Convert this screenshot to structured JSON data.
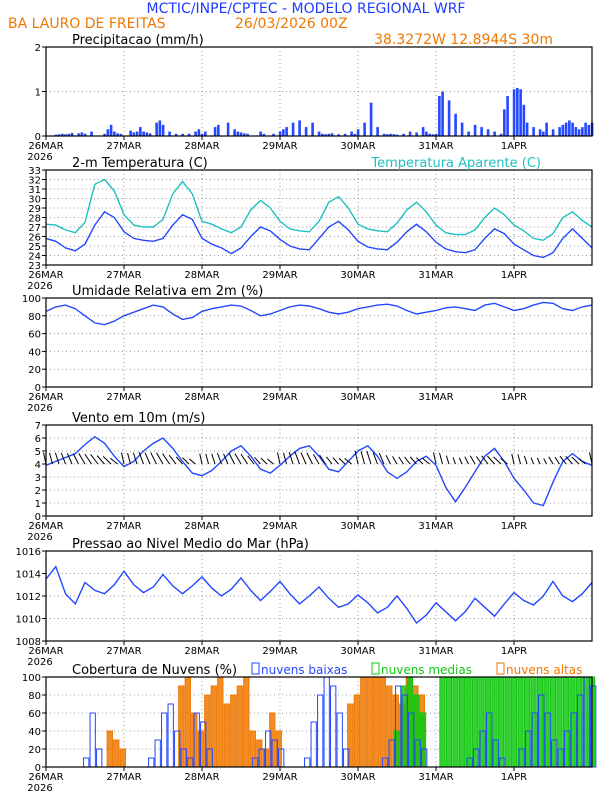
{
  "header": {
    "title": "MCTIC/INPE/CPTEC - MODELO REGIONAL WRF",
    "location": "BA LAURO DE FREITAS",
    "run": "26/03/2026 00Z",
    "coords": "38.3272W 12.8944S 30m"
  },
  "colors": {
    "title": "#1e3cff",
    "orange": "#f07800",
    "cyan": "#20c0c0",
    "blue": "#2448ff",
    "green": "#10c810",
    "grid": "#9a9a9a"
  },
  "x_axis": {
    "labels": [
      "26MAR",
      "27MAR",
      "28MAR",
      "29MAR",
      "30MAR",
      "31MAR",
      "1APR"
    ],
    "year": "2026",
    "hours_total": 168
  },
  "chart_data": [
    {
      "type": "bar",
      "name": "precip",
      "title": "Precipitacao (mm/h)",
      "ylim": [
        0,
        2
      ],
      "yticks": [
        0,
        1,
        2
      ],
      "x_hours": [
        3,
        4,
        5,
        6,
        7,
        8,
        10,
        11,
        12,
        14,
        18,
        19,
        20,
        21,
        22,
        23,
        26,
        27,
        28,
        29,
        30,
        31,
        32,
        34,
        35,
        36,
        38,
        40,
        42,
        44,
        46,
        47,
        48,
        49,
        52,
        53,
        56,
        58,
        59,
        60,
        61,
        62,
        66,
        67,
        70,
        72,
        73,
        74,
        76,
        78,
        80,
        82,
        84,
        85,
        86,
        87,
        88,
        90,
        92,
        94,
        95,
        96,
        98,
        100,
        102,
        104,
        105,
        106,
        107,
        108,
        110,
        112,
        114,
        116,
        117,
        118,
        119,
        120,
        121,
        122,
        124,
        126,
        128,
        130,
        132,
        134,
        136,
        138,
        140,
        141,
        142,
        144,
        145,
        146,
        147,
        148,
        150,
        152,
        153,
        154,
        156,
        158,
        159,
        160,
        161,
        162,
        163,
        164,
        165,
        166,
        167,
        168
      ],
      "values": [
        0.03,
        0.04,
        0.05,
        0.04,
        0.05,
        0.07,
        0.06,
        0.08,
        0.05,
        0.1,
        0.05,
        0.15,
        0.25,
        0.1,
        0.06,
        0.05,
        0.12,
        0.08,
        0.1,
        0.2,
        0.1,
        0.08,
        0.06,
        0.3,
        0.35,
        0.25,
        0.1,
        0.05,
        0.05,
        0.05,
        0.1,
        0.15,
        0.05,
        0.1,
        0.2,
        0.25,
        0.3,
        0.15,
        0.1,
        0.08,
        0.06,
        0.05,
        0.1,
        0.05,
        0.05,
        0.1,
        0.15,
        0.2,
        0.3,
        0.35,
        0.2,
        0.3,
        0.1,
        0.05,
        0.04,
        0.05,
        0.06,
        0.04,
        0.05,
        0.1,
        0.05,
        0.15,
        0.3,
        0.75,
        0.2,
        0.05,
        0.04,
        0.05,
        0.04,
        0.03,
        0.05,
        0.1,
        0.08,
        0.2,
        0.1,
        0.05,
        0.04,
        0.05,
        0.9,
        1.0,
        0.8,
        0.5,
        0.3,
        0.1,
        0.25,
        0.2,
        0.15,
        0.1,
        0.05,
        0.6,
        0.9,
        1.05,
        1.08,
        1.05,
        0.7,
        0.3,
        0.2,
        0.15,
        0.1,
        0.3,
        0.15,
        0.2,
        0.25,
        0.3,
        0.35,
        0.3,
        0.2,
        0.15,
        0.2,
        0.3,
        0.25,
        0.3
      ]
    },
    {
      "type": "line",
      "name": "temperature",
      "title": "2-m Temperatura (C)",
      "legend": "Temperatura Aparente (C)",
      "ylim": [
        23,
        33
      ],
      "yticks": [
        23,
        24,
        25,
        26,
        27,
        28,
        29,
        30,
        31,
        32,
        33
      ],
      "x_hours": [
        0,
        3,
        6,
        9,
        12,
        15,
        18,
        21,
        24,
        27,
        30,
        33,
        36,
        39,
        42,
        45,
        48,
        51,
        54,
        57,
        60,
        63,
        66,
        69,
        72,
        75,
        78,
        81,
        84,
        87,
        90,
        93,
        96,
        99,
        102,
        105,
        108,
        111,
        114,
        117,
        120,
        123,
        126,
        129,
        132,
        135,
        138,
        141,
        144,
        147,
        150,
        153,
        156,
        159,
        162,
        165,
        168
      ],
      "series": [
        {
          "name": "2-m Temperatura (C)",
          "values": [
            25.8,
            25.5,
            24.8,
            24.5,
            25.2,
            27.2,
            28.6,
            28.0,
            26.5,
            25.8,
            25.6,
            25.5,
            25.8,
            27.2,
            28.3,
            27.8,
            25.8,
            25.2,
            24.8,
            24.2,
            24.8,
            26.0,
            27.0,
            26.6,
            25.7,
            25.0,
            24.7,
            24.6,
            25.8,
            27.0,
            27.6,
            26.7,
            25.5,
            24.9,
            24.7,
            24.6,
            25.4,
            26.5,
            27.3,
            26.5,
            25.4,
            24.7,
            24.4,
            24.3,
            24.6,
            25.8,
            26.8,
            26.3,
            25.2,
            24.6,
            24.0,
            23.8,
            24.3,
            25.8,
            26.8,
            25.8,
            24.8
          ]
        },
        {
          "name": "Temperatura Aparente (C)",
          "values": [
            27.3,
            27.2,
            26.7,
            26.4,
            27.5,
            31.5,
            32.0,
            30.8,
            28.3,
            27.2,
            27.0,
            27.0,
            27.8,
            30.5,
            31.8,
            30.5,
            27.6,
            27.3,
            26.8,
            26.4,
            27.0,
            28.8,
            29.8,
            29.0,
            27.6,
            26.8,
            26.6,
            26.5,
            27.6,
            29.6,
            30.2,
            29.0,
            27.3,
            26.8,
            26.6,
            26.5,
            27.4,
            28.8,
            29.6,
            28.6,
            27.2,
            26.4,
            26.2,
            26.2,
            26.7,
            28.0,
            29.0,
            28.3,
            27.2,
            26.6,
            25.8,
            25.6,
            26.3,
            28.0,
            28.6,
            27.7,
            27.0
          ]
        }
      ]
    },
    {
      "type": "line",
      "name": "humidity",
      "title": "Umidade Relativa em 2m (%)",
      "ylim": [
        0,
        100
      ],
      "yticks": [
        0,
        20,
        40,
        60,
        80,
        100
      ],
      "x_hours": [
        0,
        3,
        6,
        9,
        12,
        15,
        18,
        21,
        24,
        27,
        30,
        33,
        36,
        39,
        42,
        45,
        48,
        51,
        54,
        57,
        60,
        63,
        66,
        69,
        72,
        75,
        78,
        81,
        84,
        87,
        90,
        93,
        96,
        99,
        102,
        105,
        108,
        111,
        114,
        117,
        120,
        123,
        126,
        129,
        132,
        135,
        138,
        141,
        144,
        147,
        150,
        153,
        156,
        159,
        162,
        165,
        168
      ],
      "series": [
        {
          "name": "Umidade Relativa",
          "values": [
            85,
            90,
            92,
            88,
            80,
            72,
            70,
            74,
            80,
            84,
            88,
            92,
            90,
            82,
            76,
            78,
            85,
            88,
            90,
            92,
            91,
            86,
            80,
            82,
            86,
            90,
            92,
            91,
            88,
            84,
            82,
            84,
            88,
            90,
            92,
            93,
            91,
            86,
            82,
            84,
            86,
            89,
            90,
            88,
            86,
            92,
            94,
            90,
            86,
            88,
            92,
            95,
            94,
            88,
            86,
            90,
            92
          ]
        }
      ]
    },
    {
      "type": "line",
      "name": "wind",
      "title": "Vento em 10m (m/s)",
      "ylim": [
        0,
        7
      ],
      "yticks": [
        0,
        1,
        2,
        3,
        4,
        5,
        6,
        7
      ],
      "barbs": "wind-direction-arrows",
      "x_hours": [
        0,
        3,
        6,
        9,
        12,
        15,
        18,
        21,
        24,
        27,
        30,
        33,
        36,
        39,
        42,
        45,
        48,
        51,
        54,
        57,
        60,
        63,
        66,
        69,
        72,
        75,
        78,
        81,
        84,
        87,
        90,
        93,
        96,
        99,
        102,
        105,
        108,
        111,
        114,
        117,
        120,
        123,
        126,
        129,
        132,
        135,
        138,
        141,
        144,
        147,
        150,
        153,
        156,
        159,
        162,
        165,
        168
      ],
      "series": [
        {
          "name": "Vento",
          "values": [
            3.9,
            4.2,
            4.5,
            4.8,
            5.5,
            6.1,
            5.6,
            4.6,
            3.8,
            4.2,
            5.0,
            5.6,
            6.0,
            5.2,
            4.2,
            3.3,
            3.1,
            3.5,
            4.2,
            5.0,
            5.4,
            4.6,
            3.6,
            3.3,
            3.9,
            4.6,
            5.2,
            5.4,
            4.6,
            3.6,
            3.4,
            4.2,
            5.0,
            5.4,
            4.6,
            3.4,
            2.9,
            3.4,
            4.2,
            4.6,
            3.9,
            2.2,
            1.1,
            2.2,
            3.4,
            4.6,
            5.2,
            4.2,
            2.9,
            2.0,
            1.0,
            0.8,
            2.6,
            4.2,
            4.8,
            4.2,
            3.9
          ]
        }
      ]
    },
    {
      "type": "line",
      "name": "pressure",
      "title": "Pressao ao Nivel Medio do Mar (hPa)",
      "ylim": [
        1008,
        1016
      ],
      "yticks": [
        1008,
        1010,
        1012,
        1014,
        1016
      ],
      "x_hours": [
        0,
        3,
        6,
        9,
        12,
        15,
        18,
        21,
        24,
        27,
        30,
        33,
        36,
        39,
        42,
        45,
        48,
        51,
        54,
        57,
        60,
        63,
        66,
        69,
        72,
        75,
        78,
        81,
        84,
        87,
        90,
        93,
        96,
        99,
        102,
        105,
        108,
        111,
        114,
        117,
        120,
        123,
        126,
        129,
        132,
        135,
        138,
        141,
        144,
        147,
        150,
        153,
        156,
        159,
        162,
        165,
        168
      ],
      "series": [
        {
          "name": "Pressao",
          "values": [
            1013.5,
            1014.6,
            1012.2,
            1011.3,
            1013.2,
            1012.5,
            1012.2,
            1013.0,
            1014.2,
            1013.0,
            1012.3,
            1012.8,
            1013.9,
            1012.9,
            1012.2,
            1012.9,
            1013.7,
            1012.7,
            1012.0,
            1012.6,
            1013.6,
            1012.5,
            1011.6,
            1012.4,
            1013.3,
            1012.2,
            1011.3,
            1012.0,
            1012.8,
            1011.8,
            1011.0,
            1011.3,
            1012.1,
            1011.4,
            1010.5,
            1011.0,
            1012.0,
            1010.9,
            1009.6,
            1010.3,
            1011.4,
            1010.6,
            1009.8,
            1010.6,
            1011.8,
            1011.0,
            1010.2,
            1011.3,
            1012.3,
            1011.6,
            1011.2,
            1012.0,
            1013.3,
            1012.0,
            1011.5,
            1012.2,
            1013.2
          ]
        }
      ]
    },
    {
      "type": "bar",
      "name": "clouds",
      "title": "Cobertura de Nuvens (%)",
      "ylim": [
        0,
        100
      ],
      "yticks": [
        0,
        20,
        40,
        60,
        80,
        100
      ],
      "legend": [
        "nuvens baixas",
        "nuvens medias",
        "nuvens altas"
      ],
      "x_hours": [
        0,
        2,
        4,
        6,
        8,
        10,
        12,
        14,
        16,
        18,
        20,
        22,
        24,
        26,
        28,
        30,
        32,
        34,
        36,
        38,
        40,
        42,
        44,
        46,
        48,
        50,
        52,
        54,
        56,
        58,
        60,
        62,
        64,
        66,
        68,
        70,
        72,
        74,
        76,
        78,
        80,
        82,
        84,
        86,
        88,
        90,
        92,
        94,
        96,
        98,
        100,
        102,
        104,
        106,
        108,
        110,
        112,
        114,
        116,
        118,
        120,
        122,
        124,
        126,
        128,
        130,
        132,
        134,
        136,
        138,
        140,
        142,
        144,
        146,
        148,
        150,
        152,
        154,
        156,
        158,
        160,
        162,
        164,
        166,
        168
      ],
      "series": [
        {
          "name": "nuvens baixas",
          "values": [
            0,
            0,
            0,
            0,
            0,
            0,
            10,
            60,
            20,
            0,
            0,
            0,
            0,
            0,
            0,
            0,
            10,
            30,
            60,
            70,
            40,
            20,
            10,
            60,
            50,
            20,
            0,
            0,
            0,
            0,
            0,
            0,
            10,
            20,
            40,
            30,
            20,
            0,
            0,
            0,
            10,
            50,
            80,
            100,
            90,
            60,
            20,
            0,
            0,
            0,
            0,
            0,
            10,
            30,
            90,
            80,
            60,
            30,
            20,
            0,
            0,
            0,
            0,
            0,
            0,
            10,
            20,
            40,
            60,
            30,
            10,
            0,
            0,
            20,
            40,
            60,
            80,
            60,
            30,
            20,
            40,
            60,
            80,
            100,
            90
          ]
        },
        {
          "name": "nuvens medias",
          "values": [
            0,
            0,
            0,
            0,
            0,
            0,
            0,
            0,
            0,
            0,
            0,
            0,
            0,
            0,
            0,
            0,
            0,
            0,
            0,
            0,
            0,
            0,
            0,
            0,
            0,
            0,
            0,
            0,
            0,
            0,
            0,
            0,
            0,
            0,
            0,
            0,
            0,
            0,
            0,
            0,
            0,
            0,
            0,
            0,
            0,
            0,
            0,
            0,
            0,
            0,
            0,
            0,
            0,
            0,
            40,
            90,
            100,
            80,
            60,
            0,
            0,
            100,
            100,
            100,
            100,
            100,
            100,
            100,
            100,
            100,
            100,
            100,
            100,
            100,
            100,
            100,
            100,
            100,
            100,
            100,
            100,
            100,
            100,
            100,
            100
          ]
        },
        {
          "name": "nuvens altas",
          "values": [
            0,
            0,
            0,
            0,
            0,
            0,
            0,
            0,
            0,
            0,
            40,
            30,
            20,
            0,
            0,
            0,
            0,
            0,
            0,
            0,
            0,
            90,
            100,
            60,
            40,
            80,
            90,
            100,
            70,
            80,
            90,
            100,
            40,
            30,
            20,
            60,
            40,
            0,
            0,
            0,
            0,
            0,
            0,
            0,
            0,
            0,
            0,
            70,
            80,
            100,
            100,
            100,
            100,
            90,
            80,
            70,
            100,
            90,
            80,
            0,
            0,
            0,
            0,
            0,
            0,
            0,
            0,
            0,
            0,
            0,
            0,
            0,
            0,
            0,
            0,
            0,
            0,
            0,
            0,
            0,
            0,
            0,
            0,
            0,
            0
          ]
        }
      ]
    }
  ]
}
